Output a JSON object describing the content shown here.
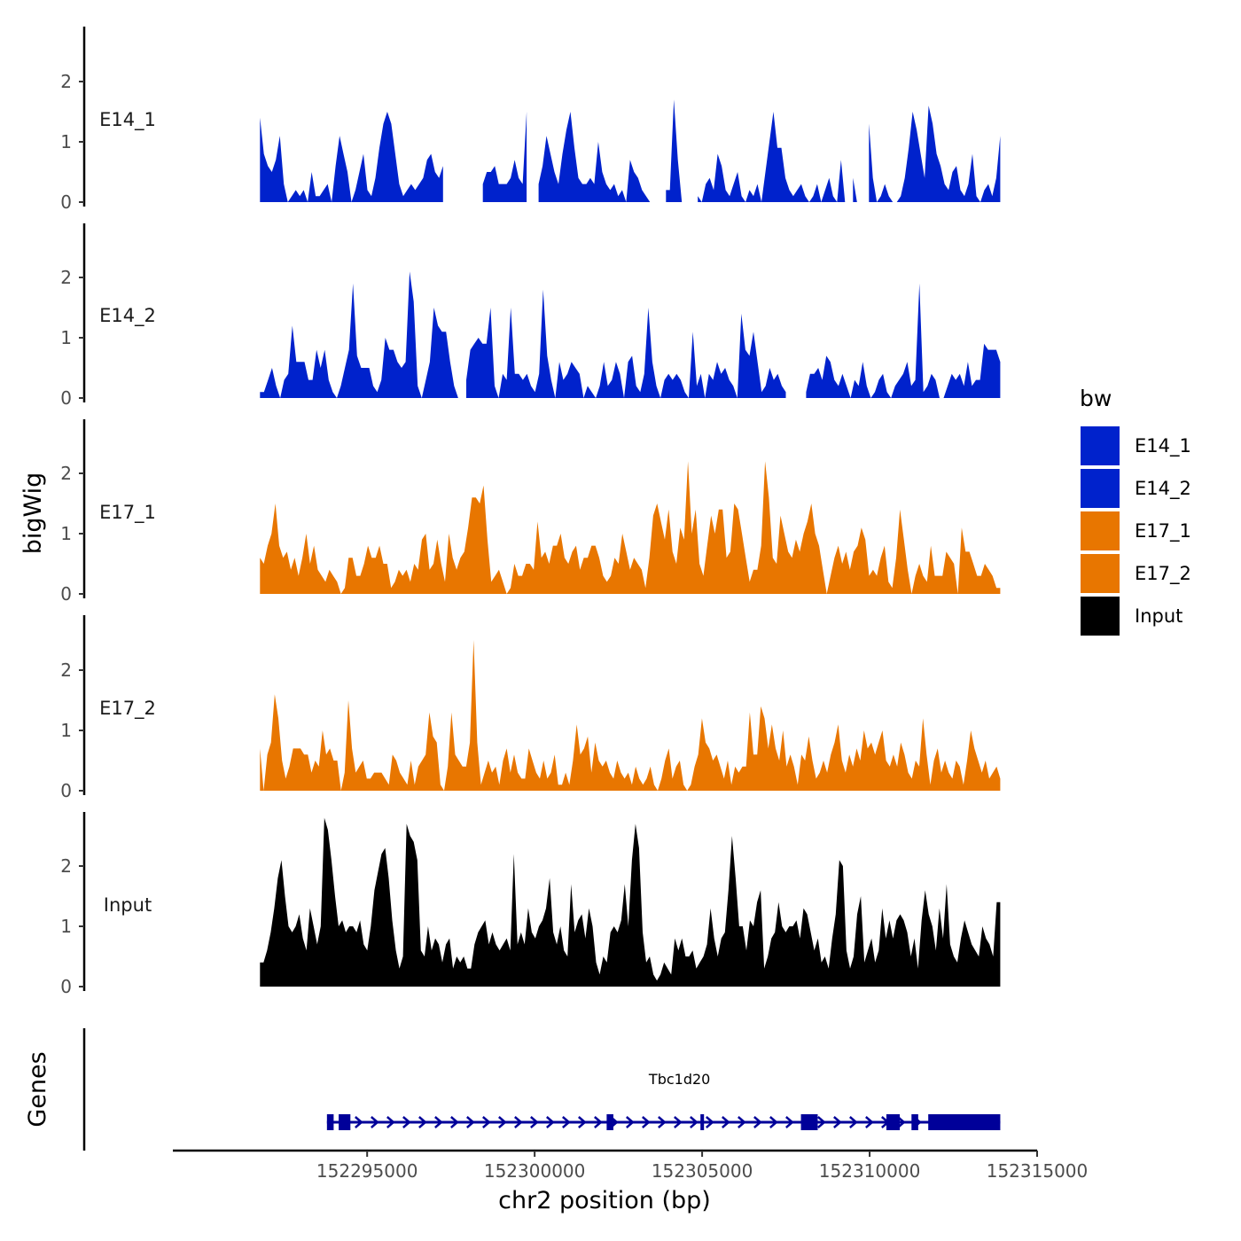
{
  "chart_data": {
    "type": "area",
    "ylabel": "bigWig",
    "xlabel": "chr2 position (bp)",
    "genes_track_label": "Genes",
    "x_range": [
      152291800,
      152313900
    ],
    "xlim": [
      152289200,
      152315000
    ],
    "x_ticks": [
      152295000,
      152300000,
      152305000,
      152310000,
      152315000
    ],
    "x_tick_labels": [
      "152295000",
      "152300000",
      "152305000",
      "152310000",
      "152315000"
    ],
    "ylim": [
      0,
      2.9
    ],
    "y_ticks": [
      0,
      1,
      2
    ],
    "y_tick_labels": [
      "0",
      "1",
      "2"
    ],
    "legend": {
      "title": "bw",
      "entries": [
        "E14_1",
        "E14_2",
        "E17_1",
        "E17_2",
        "Input"
      ],
      "colors": [
        "#0022CC",
        "#0022CC",
        "#E87600",
        "#E87600",
        "#000000"
      ]
    },
    "series": [
      {
        "name": "E14_1",
        "color": "#0022CC",
        "values": [
          1.4,
          0.8,
          0.6,
          0.5,
          0.7,
          1.1,
          0.3,
          0.0,
          0.1,
          0.2,
          0.1,
          0.2,
          0.0,
          0.5,
          0.1,
          0.1,
          0.2,
          0.3,
          0.0,
          0.6,
          1.1,
          0.8,
          0.5,
          0.0,
          0.2,
          0.5,
          0.8,
          0.2,
          0.1,
          0.4,
          0.9,
          1.3,
          1.5,
          1.3,
          0.8,
          0.3,
          0.1,
          0.2,
          0.3,
          0.2,
          0.3,
          0.4,
          0.7,
          0.8,
          0.5,
          0.4,
          0.6,
          null,
          null,
          null,
          null,
          null,
          null,
          null,
          null,
          null,
          0.3,
          0.5,
          0.5,
          0.6,
          0.3,
          0.3,
          0.3,
          0.4,
          0.7,
          0.4,
          0.3,
          1.5,
          null,
          null,
          0.3,
          0.6,
          1.1,
          0.8,
          0.5,
          0.3,
          0.8,
          1.2,
          1.5,
          0.9,
          0.4,
          0.3,
          0.3,
          0.4,
          0.3,
          1.0,
          0.5,
          0.3,
          0.2,
          0.3,
          0.1,
          0.2,
          0.0,
          0.7,
          0.5,
          0.4,
          0.2,
          0.1,
          0.0,
          null,
          null,
          null,
          0.2,
          0.2,
          1.7,
          0.7,
          0.0,
          null,
          null,
          null,
          0.1,
          0.0,
          0.3,
          0.4,
          0.2,
          0.8,
          0.6,
          0.2,
          0.1,
          0.3,
          0.5,
          0.1,
          0.0,
          0.2,
          0.1,
          0.3,
          0.0,
          0.5,
          1.0,
          1.5,
          0.9,
          0.9,
          0.4,
          0.2,
          0.1,
          0.2,
          0.3,
          0.1,
          0.0,
          0.1,
          0.3,
          0.0,
          0.2,
          0.4,
          0.1,
          0.0,
          0.7,
          0.0,
          null,
          0.4,
          0.0,
          0.0,
          null,
          1.3,
          0.4,
          0.0,
          0.1,
          0.3,
          0.1,
          0.0,
          0.0,
          0.1,
          0.4,
          0.9,
          1.5,
          1.2,
          0.8,
          0.4,
          1.6,
          1.3,
          0.8,
          0.6,
          0.3,
          0.2,
          0.5,
          0.6,
          0.2,
          0.1,
          0.3,
          0.8,
          0.1,
          0.0,
          0.2,
          0.3,
          0.1,
          0.4,
          1.1
        ]
      },
      {
        "name": "E14_2",
        "color": "#0022CC",
        "values": [
          0.1,
          0.1,
          0.3,
          0.5,
          0.2,
          0.0,
          0.3,
          0.4,
          1.2,
          0.6,
          0.6,
          0.6,
          0.3,
          0.3,
          0.8,
          0.5,
          0.8,
          0.3,
          0.1,
          0.0,
          0.2,
          0.5,
          0.8,
          1.9,
          0.7,
          0.5,
          0.5,
          0.5,
          0.2,
          0.1,
          0.3,
          1.0,
          0.8,
          0.8,
          0.6,
          0.5,
          0.6,
          2.1,
          1.6,
          0.2,
          0.0,
          0.3,
          0.6,
          1.5,
          1.2,
          1.1,
          1.1,
          0.6,
          0.2,
          0.0,
          null,
          0.3,
          0.8,
          0.9,
          1.0,
          0.9,
          0.9,
          1.5,
          0.2,
          0.0,
          0.4,
          0.3,
          1.5,
          0.4,
          0.4,
          0.3,
          0.4,
          0.2,
          0.1,
          0.4,
          1.8,
          0.7,
          0.3,
          0.0,
          0.6,
          0.3,
          0.4,
          0.6,
          0.5,
          0.4,
          0.0,
          0.2,
          0.1,
          0.0,
          0.2,
          0.6,
          0.2,
          0.3,
          0.6,
          0.4,
          0.0,
          0.6,
          0.7,
          0.2,
          0.1,
          0.4,
          1.5,
          0.6,
          0.2,
          0.0,
          0.3,
          0.4,
          0.3,
          0.4,
          0.3,
          0.1,
          0.0,
          1.1,
          0.2,
          0.4,
          0.0,
          0.4,
          0.3,
          0.6,
          0.4,
          0.5,
          0.3,
          0.2,
          0.0,
          1.4,
          0.8,
          0.7,
          1.1,
          0.6,
          0.1,
          0.2,
          0.5,
          0.3,
          0.4,
          0.2,
          0.1,
          null,
          null,
          null,
          null,
          0.1,
          0.4,
          0.4,
          0.5,
          0.3,
          0.7,
          0.6,
          0.3,
          0.2,
          0.4,
          0.2,
          0.0,
          0.3,
          0.2,
          0.6,
          0.2,
          0.0,
          0.1,
          0.3,
          0.4,
          0.1,
          0.0,
          0.2,
          0.3,
          0.4,
          0.6,
          0.2,
          0.3,
          1.9,
          0.1,
          0.2,
          0.4,
          0.3,
          0.0,
          0.0,
          0.2,
          0.4,
          0.3,
          0.4,
          0.2,
          0.6,
          0.2,
          0.3,
          0.3,
          0.9,
          0.8,
          0.8,
          0.8,
          0.6
        ]
      },
      {
        "name": "E17_1",
        "color": "#E87600",
        "values": [
          0.6,
          0.5,
          0.8,
          1.0,
          1.5,
          0.8,
          0.6,
          0.7,
          0.4,
          0.6,
          0.3,
          0.6,
          1.0,
          0.5,
          0.8,
          0.4,
          0.3,
          0.2,
          0.4,
          0.3,
          0.2,
          0.0,
          0.1,
          0.6,
          0.6,
          0.3,
          0.3,
          0.5,
          0.8,
          0.6,
          0.6,
          0.8,
          0.5,
          0.5,
          0.1,
          0.2,
          0.4,
          0.3,
          0.4,
          0.2,
          0.5,
          0.4,
          0.9,
          1.0,
          0.4,
          0.5,
          0.9,
          0.5,
          0.2,
          1.0,
          0.6,
          0.4,
          0.6,
          0.7,
          1.1,
          1.6,
          1.6,
          1.5,
          1.8,
          0.9,
          0.2,
          0.3,
          0.4,
          0.2,
          0.0,
          0.1,
          0.5,
          0.3,
          0.3,
          0.5,
          0.5,
          0.4,
          1.2,
          0.6,
          0.7,
          0.5,
          0.8,
          0.8,
          1.0,
          0.6,
          0.5,
          0.7,
          0.8,
          0.4,
          0.6,
          0.6,
          0.8,
          0.8,
          0.6,
          0.3,
          0.2,
          0.3,
          0.6,
          0.5,
          1.0,
          0.7,
          0.4,
          0.6,
          0.5,
          0.4,
          0.1,
          0.6,
          1.3,
          1.5,
          1.2,
          0.9,
          1.4,
          0.7,
          0.5,
          1.1,
          0.9,
          2.2,
          1.0,
          1.4,
          0.5,
          0.3,
          0.8,
          1.3,
          1.0,
          1.4,
          1.4,
          0.6,
          0.7,
          1.5,
          1.4,
          1.0,
          0.6,
          0.2,
          0.4,
          0.4,
          0.8,
          2.2,
          1.6,
          0.6,
          0.5,
          1.3,
          1.0,
          0.7,
          0.6,
          0.9,
          0.7,
          1.0,
          1.2,
          1.5,
          1.0,
          0.8,
          0.4,
          0.0,
          0.3,
          0.6,
          0.8,
          0.5,
          0.7,
          0.4,
          0.7,
          0.8,
          1.1,
          0.9,
          0.3,
          0.4,
          0.3,
          0.6,
          0.8,
          0.2,
          0.1,
          0.6,
          1.4,
          0.9,
          0.4,
          0.0,
          0.3,
          0.5,
          0.3,
          0.2,
          0.8,
          0.3,
          0.3,
          0.3,
          0.7,
          0.6,
          0.5,
          0.0,
          1.1,
          0.7,
          0.7,
          0.5,
          0.3,
          0.3,
          0.5,
          0.4,
          0.3,
          0.1,
          0.1
        ]
      },
      {
        "name": "E17_2",
        "color": "#E87600",
        "values": [
          0.7,
          0.0,
          0.6,
          0.8,
          1.6,
          1.2,
          0.5,
          0.2,
          0.4,
          0.7,
          0.7,
          0.7,
          0.6,
          0.6,
          0.3,
          0.5,
          0.4,
          1.0,
          0.6,
          0.7,
          0.5,
          0.5,
          0.0,
          0.3,
          1.5,
          0.7,
          0.3,
          0.4,
          0.5,
          0.2,
          0.2,
          0.3,
          0.3,
          0.3,
          0.2,
          0.1,
          0.6,
          0.5,
          0.3,
          0.2,
          0.1,
          0.5,
          0.1,
          0.4,
          0.5,
          0.6,
          1.3,
          0.9,
          0.8,
          0.1,
          0.0,
          0.4,
          1.3,
          0.6,
          0.5,
          0.4,
          0.4,
          0.8,
          2.5,
          0.8,
          0.1,
          0.3,
          0.5,
          0.3,
          0.4,
          0.1,
          0.5,
          0.7,
          0.3,
          0.6,
          0.3,
          0.2,
          0.2,
          0.7,
          0.5,
          0.3,
          0.2,
          0.5,
          0.2,
          0.3,
          0.6,
          0.1,
          0.1,
          0.3,
          0.1,
          0.5,
          1.1,
          0.6,
          0.7,
          0.9,
          0.3,
          0.8,
          0.5,
          0.4,
          0.5,
          0.3,
          0.2,
          0.5,
          0.3,
          0.2,
          0.3,
          0.1,
          0.4,
          0.2,
          0.1,
          0.2,
          0.4,
          0.1,
          0.0,
          0.2,
          0.5,
          0.7,
          0.2,
          0.4,
          0.5,
          0.1,
          0.0,
          0.1,
          0.4,
          0.6,
          1.2,
          0.8,
          0.7,
          0.5,
          0.6,
          0.4,
          0.2,
          0.5,
          0.1,
          0.4,
          0.3,
          0.4,
          0.4,
          1.3,
          0.6,
          0.6,
          1.4,
          1.2,
          0.7,
          1.1,
          0.7,
          0.5,
          1.0,
          0.4,
          0.6,
          0.4,
          0.1,
          0.6,
          0.5,
          0.9,
          0.5,
          0.2,
          0.3,
          0.5,
          0.3,
          0.6,
          0.8,
          1.1,
          0.5,
          0.3,
          0.6,
          0.4,
          0.7,
          0.5,
          1.0,
          0.7,
          0.8,
          0.6,
          0.8,
          1.0,
          0.5,
          0.4,
          0.6,
          0.4,
          0.8,
          0.6,
          0.3,
          0.2,
          0.5,
          0.4,
          1.2,
          0.6,
          0.1,
          0.5,
          0.7,
          0.3,
          0.5,
          0.3,
          0.2,
          0.5,
          0.4,
          0.1,
          0.5,
          1.0,
          0.7,
          0.5,
          0.3,
          0.5,
          0.2,
          0.3,
          0.4,
          0.2
        ]
      },
      {
        "name": "Input",
        "color": "#000000",
        "values": [
          0.4,
          0.4,
          0.6,
          0.9,
          1.3,
          1.8,
          2.1,
          1.5,
          1.0,
          0.9,
          1.0,
          1.2,
          0.8,
          0.6,
          1.3,
          1.0,
          0.7,
          1.0,
          2.8,
          2.6,
          2.1,
          1.5,
          1.0,
          1.1,
          0.9,
          1.0,
          1.0,
          0.9,
          1.1,
          0.7,
          0.6,
          1.0,
          1.6,
          1.9,
          2.2,
          2.3,
          1.8,
          1.1,
          0.6,
          0.3,
          0.5,
          2.7,
          2.5,
          2.4,
          2.1,
          0.6,
          0.5,
          1.0,
          0.6,
          0.8,
          0.7,
          0.4,
          0.7,
          0.8,
          0.3,
          0.5,
          0.4,
          0.5,
          0.3,
          0.3,
          0.7,
          0.9,
          1.0,
          1.1,
          0.7,
          0.9,
          0.7,
          0.6,
          0.7,
          0.8,
          0.6,
          2.2,
          0.7,
          0.9,
          0.7,
          1.3,
          0.9,
          0.8,
          1.0,
          1.1,
          1.3,
          1.8,
          0.9,
          0.7,
          1.0,
          0.6,
          0.5,
          1.7,
          0.9,
          1.1,
          1.2,
          0.8,
          1.3,
          1.0,
          0.4,
          0.2,
          0.5,
          0.4,
          0.9,
          1.0,
          0.9,
          1.1,
          1.7,
          1.0,
          2.1,
          2.7,
          2.3,
          0.9,
          0.4,
          0.5,
          0.2,
          0.1,
          0.2,
          0.4,
          0.3,
          0.2,
          0.8,
          0.6,
          0.8,
          0.5,
          0.5,
          0.6,
          0.3,
          0.4,
          0.5,
          0.7,
          1.3,
          0.8,
          0.5,
          0.8,
          0.9,
          1.6,
          2.5,
          1.8,
          1.0,
          1.0,
          0.6,
          1.1,
          1.0,
          1.4,
          1.6,
          0.3,
          0.5,
          0.8,
          0.9,
          1.4,
          1.0,
          0.9,
          1.0,
          1.0,
          1.1,
          0.8,
          1.3,
          1.2,
          0.9,
          0.6,
          0.8,
          0.4,
          0.5,
          0.3,
          0.8,
          1.2,
          2.1,
          2.0,
          0.6,
          0.3,
          0.5,
          1.2,
          1.5,
          0.4,
          0.6,
          0.8,
          0.4,
          0.6,
          1.3,
          0.8,
          1.1,
          0.8,
          1.1,
          1.2,
          1.1,
          0.9,
          0.5,
          0.8,
          0.3,
          1.1,
          1.6,
          1.2,
          1.0,
          0.6,
          1.3,
          0.8,
          1.7,
          0.7,
          0.5,
          0.4,
          0.8,
          1.1,
          0.9,
          0.7,
          0.6,
          0.5,
          1.0,
          0.8,
          0.7,
          0.5,
          1.4,
          1.4
        ]
      }
    ],
    "gene": {
      "name": "Tbc1d20",
      "color": "#000099",
      "start": 152293800,
      "end": 152313900,
      "exons": [
        [
          152293800,
          152294000
        ],
        [
          152294150,
          152294500
        ],
        [
          152302150,
          152302350
        ],
        [
          152304950,
          152305050
        ],
        [
          152307950,
          152308450
        ],
        [
          152310500,
          152310900
        ],
        [
          152311250,
          152311450
        ],
        [
          152311750,
          152313900
        ]
      ]
    }
  }
}
